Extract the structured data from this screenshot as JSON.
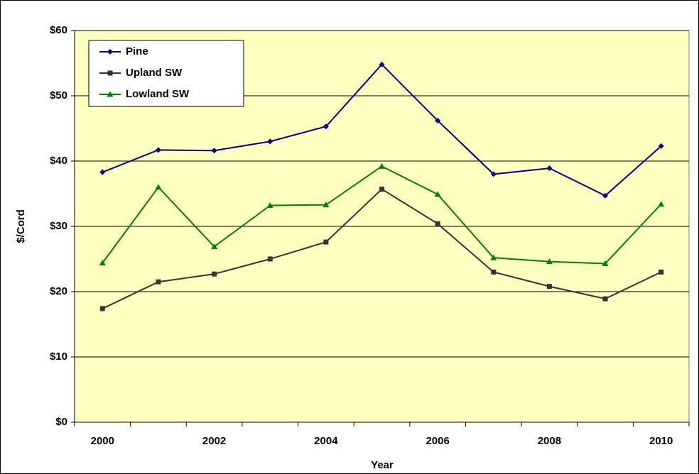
{
  "chart_data": {
    "type": "line",
    "x_label": "Year",
    "y_label": "$/Cord",
    "categories": [
      "2000",
      null,
      "2002",
      null,
      "2004",
      null,
      "2006",
      null,
      "2008",
      null,
      "2010"
    ],
    "series": [
      {
        "name": "Pine",
        "color": "#000080",
        "marker": "diamond",
        "values": [
          38.3,
          41.7,
          41.6,
          43.0,
          45.3,
          54.8,
          46.2,
          38.0,
          38.9,
          34.7,
          42.3
        ]
      },
      {
        "name": "Upland SW",
        "color": "#333333",
        "marker": "square",
        "values": [
          17.4,
          21.5,
          22.7,
          25.0,
          27.6,
          35.7,
          30.4,
          23.0,
          20.8,
          18.9,
          23.0
        ]
      },
      {
        "name": "Lowland SW",
        "color": "#008000",
        "marker": "triangle",
        "values": [
          24.4,
          36.0,
          26.9,
          33.2,
          33.3,
          39.2,
          34.9,
          25.2,
          24.6,
          24.3,
          33.4
        ]
      }
    ],
    "ylim": [
      0,
      60
    ],
    "yticks": [
      {
        "value": 0,
        "label": "$0"
      },
      {
        "value": 10,
        "label": "$10"
      },
      {
        "value": 20,
        "label": "$20"
      },
      {
        "value": 30,
        "label": "$30"
      },
      {
        "value": 40,
        "label": "$40"
      },
      {
        "value": 50,
        "label": "$50"
      },
      {
        "value": 60,
        "label": "$60"
      }
    ],
    "grid": true,
    "legend": "top-left",
    "plot_background": "#ffffc0"
  }
}
